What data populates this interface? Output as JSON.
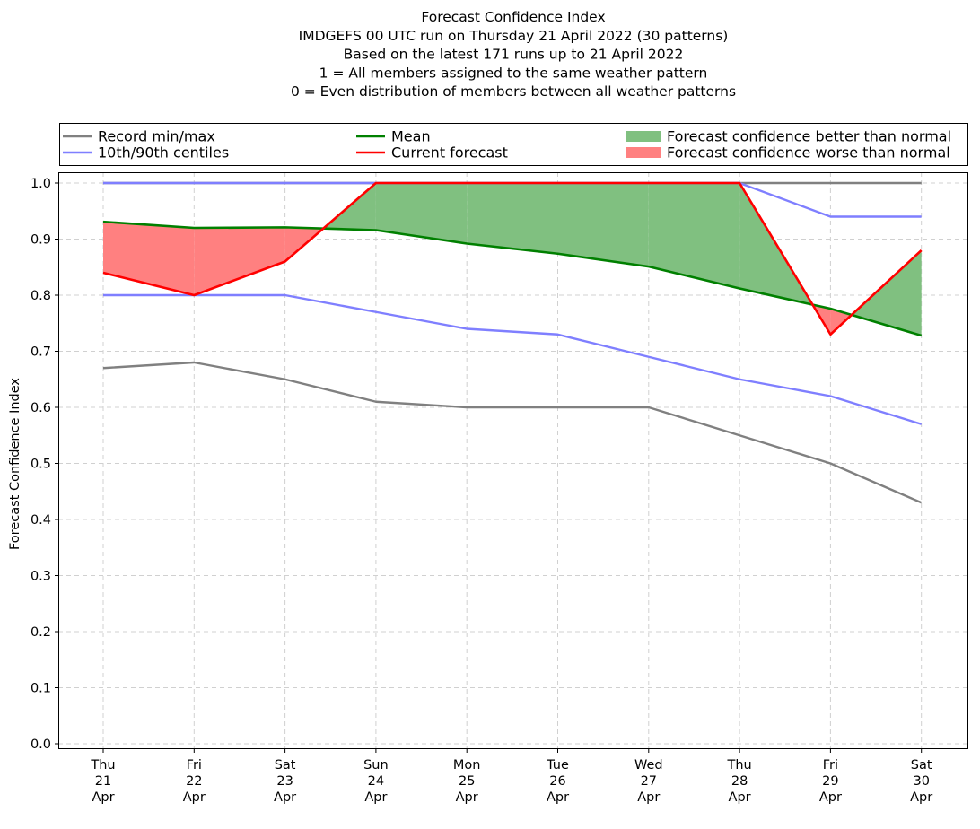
{
  "chart_data": {
    "type": "line",
    "title_lines": [
      "Forecast Confidence Index",
      "IMDGEFS 00 UTC run on Thursday 21 April 2022 (30 patterns)",
      "Based on the latest 171 runs up to 21 April 2022",
      "1 = All members assigned to the same weather pattern",
      "0 = Even distribution of members between all weather patterns"
    ],
    "ylabel": "Forecast Confidence Index",
    "xlabel": "",
    "ylim": [
      0.0,
      1.0
    ],
    "yticks": [
      "0.0",
      "0.1",
      "0.2",
      "0.3",
      "0.4",
      "0.5",
      "0.6",
      "0.7",
      "0.8",
      "0.9",
      "1.0"
    ],
    "grid": true,
    "legend_placement": "top (above plot, three columns)",
    "categories": [
      [
        "Thu",
        "21",
        "Apr"
      ],
      [
        "Fri",
        "22",
        "Apr"
      ],
      [
        "Sat",
        "23",
        "Apr"
      ],
      [
        "Sun",
        "24",
        "Apr"
      ],
      [
        "Mon",
        "25",
        "Apr"
      ],
      [
        "Tue",
        "26",
        "Apr"
      ],
      [
        "Wed",
        "27",
        "Apr"
      ],
      [
        "Thu",
        "28",
        "Apr"
      ],
      [
        "Fri",
        "29",
        "Apr"
      ],
      [
        "Sat",
        "30",
        "Apr"
      ]
    ],
    "series": [
      {
        "key": "record_max",
        "name": "Record min/max",
        "color": "#808080",
        "values": [
          1.0,
          1.0,
          1.0,
          1.0,
          1.0,
          1.0,
          1.0,
          1.0,
          1.0,
          1.0
        ]
      },
      {
        "key": "record_min",
        "name": "Record min/max",
        "color": "#808080",
        "values": [
          0.67,
          0.68,
          0.65,
          0.61,
          0.6,
          0.6,
          0.6,
          0.55,
          0.5,
          0.43
        ]
      },
      {
        "key": "p90",
        "name": "10th/90th centiles",
        "color": "#7f7fff",
        "values": [
          1.0,
          1.0,
          1.0,
          1.0,
          1.0,
          1.0,
          1.0,
          1.0,
          0.94,
          0.94
        ]
      },
      {
        "key": "p10",
        "name": "10th/90th centiles",
        "color": "#7f7fff",
        "values": [
          0.8,
          0.8,
          0.8,
          0.77,
          0.74,
          0.73,
          0.69,
          0.65,
          0.62,
          0.57
        ]
      },
      {
        "key": "mean",
        "name": "Mean",
        "color": "#008000",
        "values": [
          0.931,
          0.92,
          0.921,
          0.916,
          0.892,
          0.874,
          0.851,
          0.812,
          0.776,
          0.728
        ]
      },
      {
        "key": "current",
        "name": "Current forecast",
        "color": "#ff0000",
        "values": [
          0.84,
          0.8,
          0.86,
          1.0,
          1.0,
          1.0,
          1.0,
          1.0,
          0.73,
          0.88
        ]
      }
    ],
    "fills": {
      "better": {
        "name": "Forecast confidence better than normal",
        "color": "#80c080"
      },
      "worse": {
        "name": "Forecast confidence worse than normal",
        "color": "#ff8080"
      }
    },
    "legend": [
      {
        "label": "Record min/max",
        "kind": "line",
        "color": "#808080"
      },
      {
        "label": "Mean",
        "kind": "line",
        "color": "#008000"
      },
      {
        "label": "Forecast confidence better than normal",
        "kind": "patch",
        "color": "#80c080"
      },
      {
        "label": "10th/90th centiles",
        "kind": "line",
        "color": "#7f7fff"
      },
      {
        "label": "Current forecast",
        "kind": "line",
        "color": "#ff0000"
      },
      {
        "label": "Forecast confidence worse than normal",
        "kind": "patch",
        "color": "#ff8080"
      }
    ]
  }
}
